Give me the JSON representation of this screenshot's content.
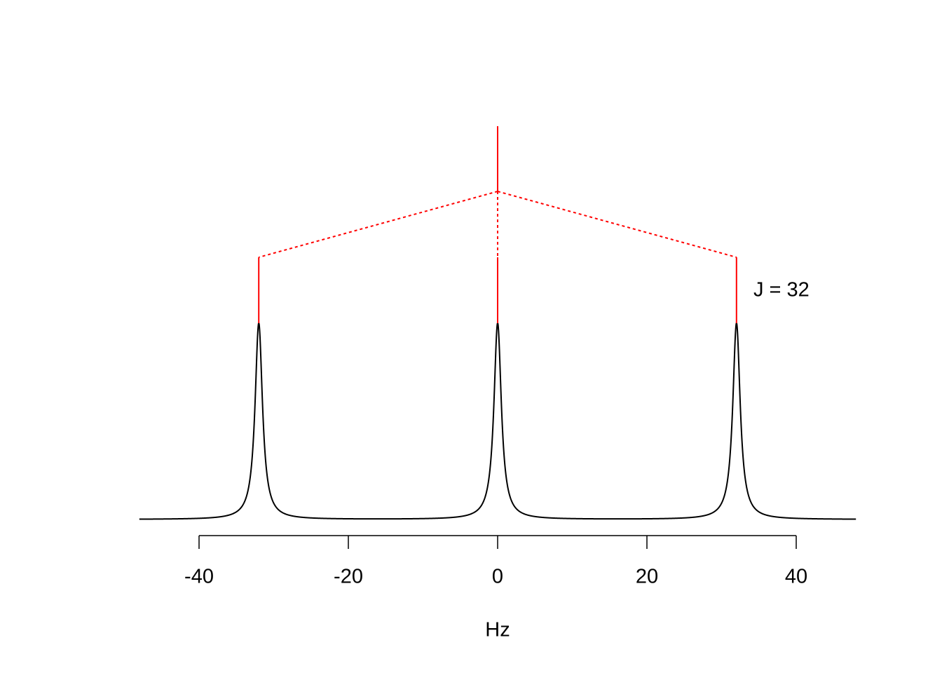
{
  "chart_data": {
    "type": "spectrum",
    "x_label": "Hz",
    "annotation": "J = 32",
    "x": [
      -32,
      0,
      32
    ],
    "values": [
      1,
      1,
      1
    ],
    "half_width": 0.6,
    "color": "#000000",
    "tree_color": "#ff0000",
    "xlim": [
      -48,
      48
    ],
    "xticks": [
      -40,
      -20,
      0,
      20,
      40
    ]
  }
}
